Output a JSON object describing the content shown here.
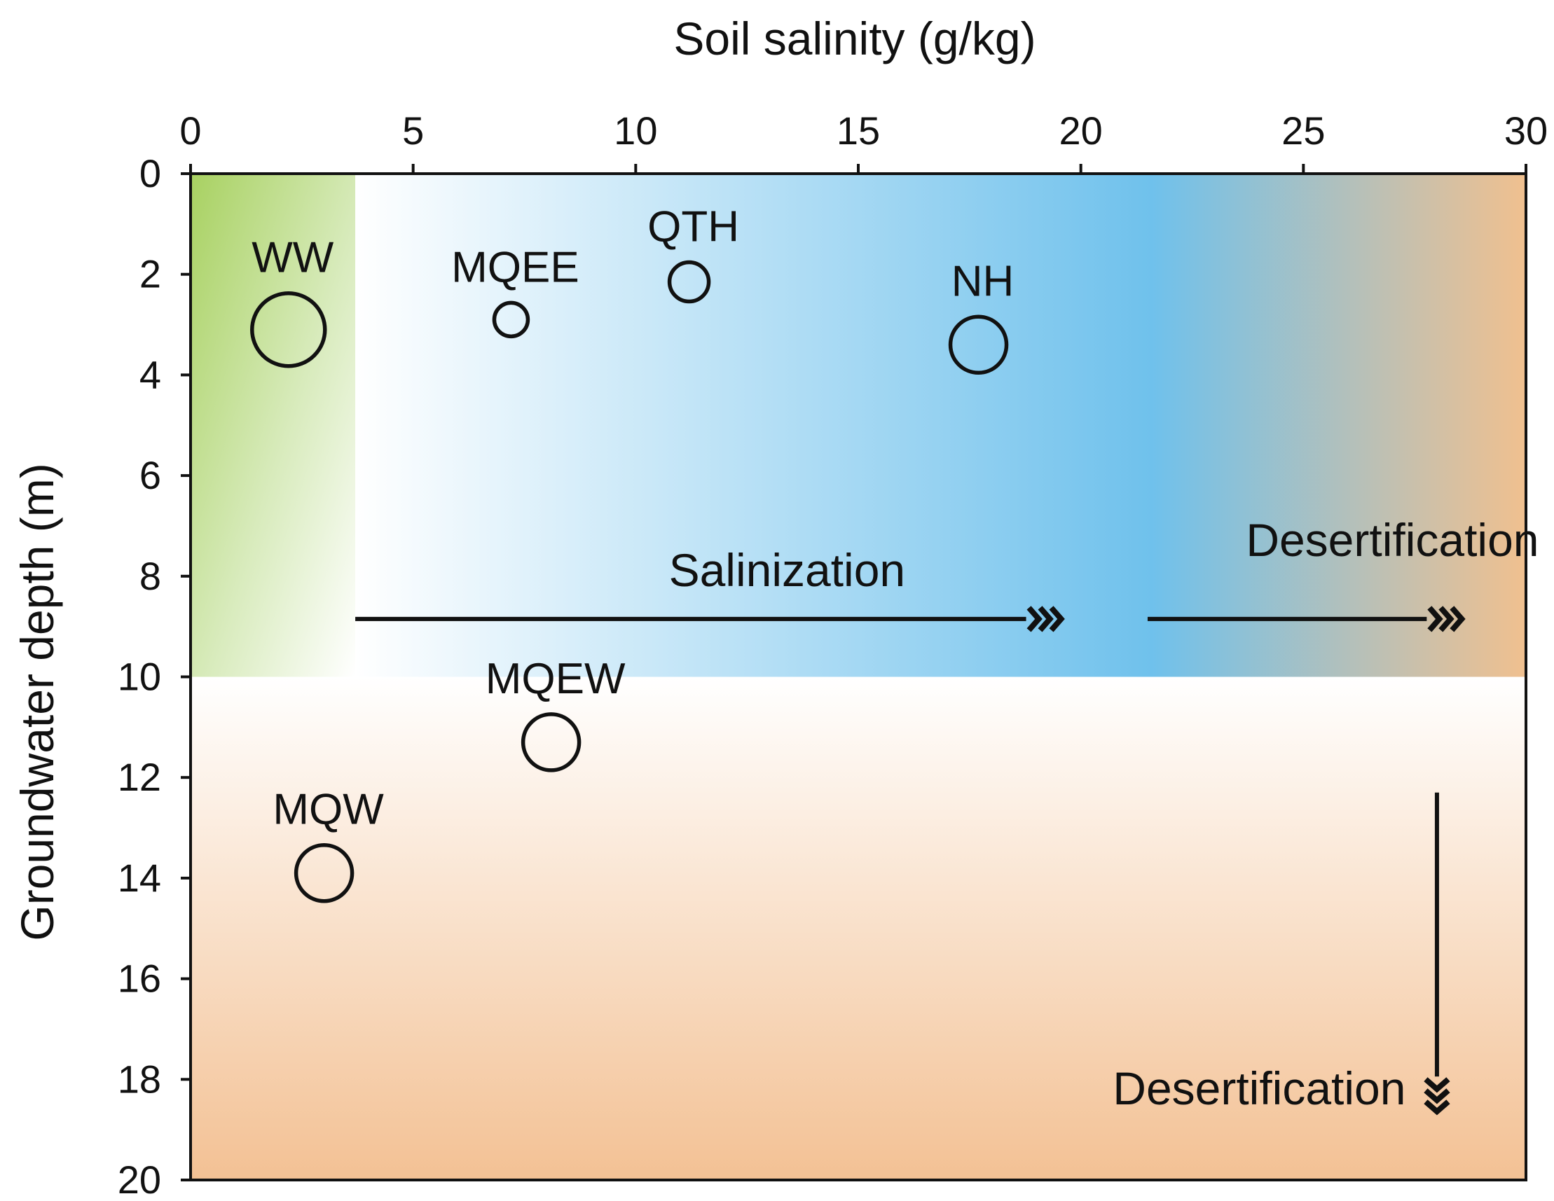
{
  "chart_data": {
    "type": "scatter",
    "title": "",
    "xlabel": "Soil salinity (g/kg)",
    "ylabel": "Groundwater depth (m)",
    "xlim": [
      0,
      30
    ],
    "ylim": [
      0,
      20
    ],
    "y_inverted": true,
    "x_axis_position": "top",
    "xticks": [
      "0",
      "5",
      "10",
      "15",
      "20",
      "25",
      "30"
    ],
    "yticks": [
      "0",
      "2",
      "4",
      "6",
      "8",
      "10",
      "12",
      "14",
      "16",
      "18",
      "20"
    ],
    "grid": false,
    "points": [
      {
        "label": "WW",
        "x": 2.2,
        "y": 3.1,
        "size": "large"
      },
      {
        "label": "MQEE",
        "x": 7.2,
        "y": 2.9,
        "size": "small"
      },
      {
        "label": "QTH",
        "x": 11.2,
        "y": 2.15,
        "size": "small-medium"
      },
      {
        "label": "NH",
        "x": 17.7,
        "y": 3.4,
        "size": "medium"
      },
      {
        "label": "MQEW",
        "x": 8.1,
        "y": 11.3,
        "size": "medium"
      },
      {
        "label": "MQW",
        "x": 3.0,
        "y": 13.9,
        "size": "medium"
      }
    ],
    "regions": [
      {
        "x": [
          0,
          3.7
        ],
        "y": [
          0,
          10
        ],
        "color": "#a8d161"
      },
      {
        "x": [
          3.7,
          30
        ],
        "y": [
          0,
          10
        ],
        "colors": [
          "#ffffff",
          "#6fc1ec",
          "#f0c08f"
        ]
      },
      {
        "x": [
          0,
          30
        ],
        "y": [
          10,
          20
        ],
        "colors": [
          "#ffffff",
          "#f3c194"
        ]
      }
    ],
    "annotations": [
      {
        "text": "Salinization",
        "arrow_from": [
          3.7,
          8.85
        ],
        "arrow_to": [
          19.4,
          8.85
        ]
      },
      {
        "text": "Desertification",
        "arrow_from": [
          21.5,
          8.85
        ],
        "arrow_to": [
          28.4,
          8.85
        ]
      },
      {
        "text": "Desertification",
        "arrow_from": [
          28.0,
          12.3
        ],
        "arrow_to": [
          28.0,
          18.5
        ]
      }
    ]
  }
}
